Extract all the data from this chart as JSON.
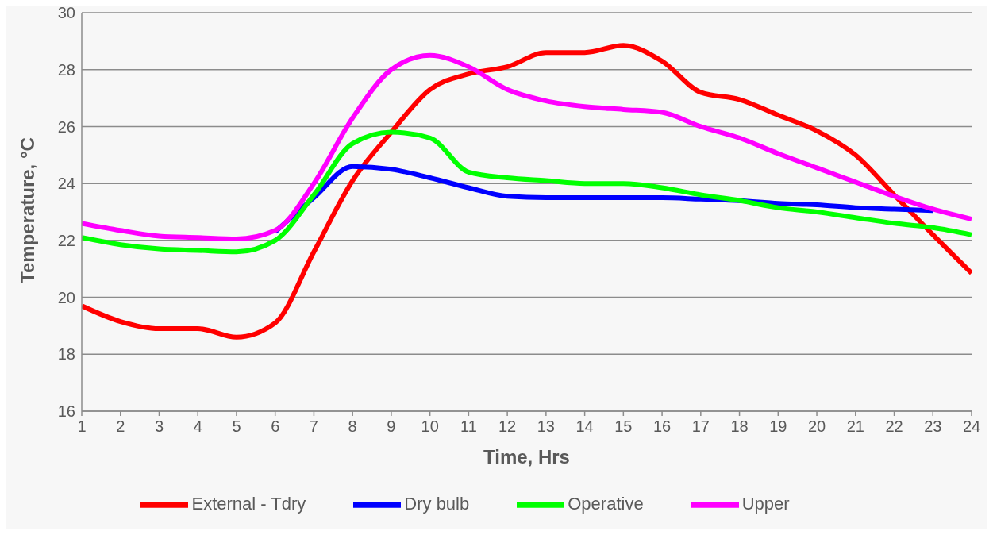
{
  "chart_data": {
    "type": "line",
    "xlabel": "Time, Hrs",
    "ylabel": "Temperature, °C",
    "x": [
      1,
      2,
      3,
      4,
      5,
      6,
      7,
      8,
      9,
      10,
      11,
      12,
      13,
      14,
      15,
      16,
      17,
      18,
      19,
      20,
      21,
      22,
      23,
      24
    ],
    "xlim": [
      1,
      24
    ],
    "xticks": [
      1,
      2,
      3,
      4,
      5,
      6,
      7,
      8,
      9,
      10,
      11,
      12,
      13,
      14,
      15,
      16,
      17,
      18,
      19,
      20,
      21,
      22,
      23,
      24
    ],
    "ylim": [
      16,
      30
    ],
    "yticks": [
      16,
      18,
      20,
      22,
      24,
      26,
      28,
      30
    ],
    "grid": "y",
    "legend": "bottom",
    "marker": "none",
    "line_style": "solid",
    "series": [
      {
        "name": "External - Tdry",
        "color": "#ff0000",
        "values": [
          19.7,
          19.15,
          18.9,
          18.9,
          18.6,
          19.1,
          21.6,
          24.1,
          25.8,
          27.3,
          27.85,
          28.1,
          28.6,
          28.6,
          28.85,
          28.3,
          27.2,
          26.95,
          26.4,
          25.85,
          25.0,
          23.6,
          22.2,
          20.85
        ]
      },
      {
        "name": "Dry bulb",
        "color": "#0000ff",
        "values": [
          null,
          null,
          null,
          null,
          null,
          22.3,
          23.5,
          24.6,
          24.5,
          24.2,
          23.85,
          23.55,
          23.5,
          23.5,
          23.5,
          23.5,
          23.45,
          23.4,
          23.3,
          23.25,
          23.15,
          23.1,
          23.05,
          null
        ]
      },
      {
        "name": "Operative",
        "color": "#00ff00",
        "values": [
          22.1,
          21.85,
          21.7,
          21.65,
          21.6,
          22.0,
          23.6,
          25.4,
          25.8,
          25.6,
          24.4,
          24.2,
          24.1,
          24.0,
          24.0,
          23.85,
          23.6,
          23.4,
          23.15,
          23.0,
          22.8,
          22.6,
          22.45,
          22.2
        ]
      },
      {
        "name": "Upper",
        "color": "#ff00ff",
        "values": [
          22.6,
          22.35,
          22.15,
          22.1,
          22.05,
          22.35,
          24.0,
          26.3,
          28.0,
          28.5,
          28.1,
          27.3,
          26.9,
          26.7,
          26.6,
          26.5,
          26.0,
          25.6,
          25.05,
          24.55,
          24.05,
          23.55,
          23.1,
          22.75
        ]
      }
    ]
  }
}
